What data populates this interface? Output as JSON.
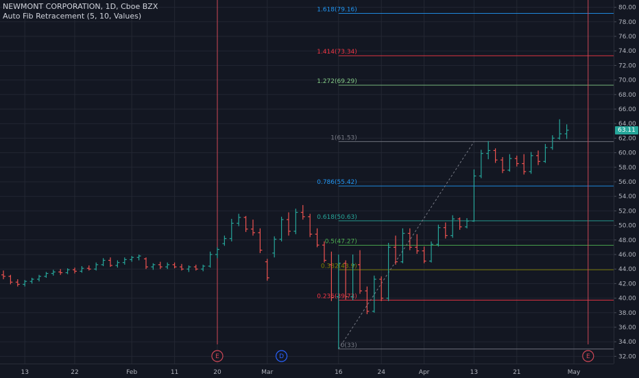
{
  "legend": {
    "symbol_line": "NEWMONT CORPORATION, 1D, Cboe BZX",
    "indicator_line": "Auto Fib Retracement (5, 10, Values)"
  },
  "colors": {
    "background": "#131722",
    "grid": "#232733",
    "up": "#26a69a",
    "down": "#ef5350",
    "event_line": "#d14857",
    "dividend": "#2962ff"
  },
  "price_axis": {
    "min": 31,
    "max": 81,
    "labels": [
      "80.00",
      "78.00",
      "76.00",
      "74.00",
      "72.00",
      "70.00",
      "68.00",
      "66.00",
      "64.00",
      "62.00",
      "60.00",
      "58.00",
      "56.00",
      "54.00",
      "52.00",
      "50.00",
      "48.00",
      "46.00",
      "44.00",
      "42.00",
      "40.00",
      "38.00",
      "36.00",
      "34.00",
      "32.00"
    ],
    "values": [
      80,
      78,
      76,
      74,
      72,
      70,
      68,
      66,
      64,
      62,
      60,
      58,
      56,
      54,
      52,
      50,
      48,
      46,
      44,
      42,
      40,
      38,
      36,
      34,
      32
    ]
  },
  "current_price": {
    "value": 63.11,
    "label": "63.11"
  },
  "time_axis": {
    "labels": [
      {
        "text": "13",
        "index": 3
      },
      {
        "text": "22",
        "index": 10
      },
      {
        "text": "Feb",
        "index": 18
      },
      {
        "text": "11",
        "index": 24
      },
      {
        "text": "20",
        "index": 30
      },
      {
        "text": "Mar",
        "index": 37
      },
      {
        "text": "16",
        "index": 47
      },
      {
        "text": "24",
        "index": 53
      },
      {
        "text": "Apr",
        "index": 59
      },
      {
        "text": "13",
        "index": 66
      },
      {
        "text": "21",
        "index": 72
      },
      {
        "text": "May",
        "index": 80
      }
    ]
  },
  "events": [
    {
      "type": "earnings",
      "label": "E",
      "index": 30
    },
    {
      "type": "dividend",
      "label": "D",
      "index": 39
    },
    {
      "type": "earnings",
      "label": "E",
      "index": 82
    }
  ],
  "fib_levels": [
    {
      "ratio": "1.618",
      "value": 79.16,
      "label": "1.618(79.16)",
      "color": "#2196f3"
    },
    {
      "ratio": "1.414",
      "value": 73.34,
      "label": "1.414(73.34)",
      "color": "#f23645"
    },
    {
      "ratio": "1.272",
      "value": 69.29,
      "label": "1.272(69.29)",
      "color": "#81c784"
    },
    {
      "ratio": "1",
      "value": 61.53,
      "label": "1(61.53)",
      "color": "#787b86"
    },
    {
      "ratio": "0.786",
      "value": 55.42,
      "label": "0.786(55.42)",
      "color": "#2196f3"
    },
    {
      "ratio": "0.618",
      "value": 50.63,
      "label": "0.618(50.63)",
      "color": "#26a69a"
    },
    {
      "ratio": "0.5",
      "value": 47.27,
      "label": "0.5(47.27)",
      "color": "#4caf50"
    },
    {
      "ratio": "0.382",
      "value": 43.9,
      "label": "0.382(43.9)",
      "color": "#808000"
    },
    {
      "ratio": "0.236",
      "value": 39.73,
      "label": "0.236(39.73)",
      "color": "#f23645"
    },
    {
      "ratio": "0",
      "value": 33,
      "label": "0(33)",
      "color": "#787b86"
    }
  ],
  "chart_data": {
    "type": "ohlc",
    "title": "NEWMONT CORPORATION, 1D, Cboe BZX",
    "ylim": [
      31,
      81
    ],
    "fib_anchor": {
      "from_index": 47,
      "from_value": 33,
      "to_index": 66,
      "to_value": 61.53
    },
    "bars": [
      {
        "o": 43.2,
        "h": 43.8,
        "l": 42.6,
        "c": 43.0
      },
      {
        "o": 43.0,
        "h": 43.2,
        "l": 41.9,
        "c": 42.2
      },
      {
        "o": 42.2,
        "h": 42.6,
        "l": 41.6,
        "c": 41.9
      },
      {
        "o": 41.9,
        "h": 42.5,
        "l": 41.6,
        "c": 42.3
      },
      {
        "o": 42.3,
        "h": 42.8,
        "l": 42.0,
        "c": 42.6
      },
      {
        "o": 42.6,
        "h": 43.2,
        "l": 42.3,
        "c": 43.0
      },
      {
        "o": 43.0,
        "h": 43.6,
        "l": 42.8,
        "c": 43.4
      },
      {
        "o": 43.4,
        "h": 43.9,
        "l": 43.1,
        "c": 43.6
      },
      {
        "o": 43.6,
        "h": 44.0,
        "l": 43.2,
        "c": 43.5
      },
      {
        "o": 43.5,
        "h": 44.1,
        "l": 43.3,
        "c": 43.9
      },
      {
        "o": 43.9,
        "h": 44.2,
        "l": 43.4,
        "c": 43.7
      },
      {
        "o": 43.7,
        "h": 44.4,
        "l": 43.5,
        "c": 44.1
      },
      {
        "o": 44.1,
        "h": 44.5,
        "l": 43.8,
        "c": 44.0
      },
      {
        "o": 44.0,
        "h": 44.9,
        "l": 43.8,
        "c": 44.6
      },
      {
        "o": 44.6,
        "h": 45.5,
        "l": 44.4,
        "c": 45.2
      },
      {
        "o": 45.2,
        "h": 45.6,
        "l": 44.3,
        "c": 44.5
      },
      {
        "o": 44.5,
        "h": 45.2,
        "l": 44.2,
        "c": 44.9
      },
      {
        "o": 44.9,
        "h": 45.6,
        "l": 44.6,
        "c": 45.3
      },
      {
        "o": 45.3,
        "h": 45.8,
        "l": 45.0,
        "c": 45.6
      },
      {
        "o": 45.6,
        "h": 46.0,
        "l": 45.2,
        "c": 45.8
      },
      {
        "o": 45.4,
        "h": 45.6,
        "l": 44.0,
        "c": 44.3
      },
      {
        "o": 44.3,
        "h": 44.8,
        "l": 43.9,
        "c": 44.6
      },
      {
        "o": 44.6,
        "h": 45.0,
        "l": 44.0,
        "c": 44.3
      },
      {
        "o": 44.3,
        "h": 44.9,
        "l": 44.0,
        "c": 44.6
      },
      {
        "o": 44.6,
        "h": 44.9,
        "l": 44.1,
        "c": 44.3
      },
      {
        "o": 44.3,
        "h": 44.7,
        "l": 43.8,
        "c": 44.0
      },
      {
        "o": 44.0,
        "h": 44.5,
        "l": 43.6,
        "c": 44.3
      },
      {
        "o": 44.3,
        "h": 44.6,
        "l": 43.8,
        "c": 44.0
      },
      {
        "o": 44.0,
        "h": 44.6,
        "l": 43.7,
        "c": 44.4
      },
      {
        "o": 44.4,
        "h": 46.4,
        "l": 44.2,
        "c": 46.0
      },
      {
        "o": 46.0,
        "h": 47.0,
        "l": 45.5,
        "c": 46.7
      },
      {
        "o": 47.5,
        "h": 48.6,
        "l": 47.2,
        "c": 48.2
      },
      {
        "o": 48.2,
        "h": 50.9,
        "l": 47.8,
        "c": 50.3
      },
      {
        "o": 50.3,
        "h": 51.6,
        "l": 49.9,
        "c": 51.1
      },
      {
        "o": 51.1,
        "h": 51.3,
        "l": 49.1,
        "c": 49.5
      },
      {
        "o": 49.5,
        "h": 50.8,
        "l": 48.6,
        "c": 49.0
      },
      {
        "o": 49.0,
        "h": 49.6,
        "l": 46.2,
        "c": 46.6
      },
      {
        "o": 45.0,
        "h": 45.4,
        "l": 42.4,
        "c": 42.8
      },
      {
        "o": 46.2,
        "h": 48.5,
        "l": 45.6,
        "c": 48.1
      },
      {
        "o": 48.1,
        "h": 51.2,
        "l": 47.8,
        "c": 50.8
      },
      {
        "o": 50.8,
        "h": 51.8,
        "l": 48.6,
        "c": 49.2
      },
      {
        "o": 49.2,
        "h": 52.3,
        "l": 48.8,
        "c": 51.8
      },
      {
        "o": 51.8,
        "h": 52.8,
        "l": 50.8,
        "c": 51.2
      },
      {
        "o": 51.2,
        "h": 51.6,
        "l": 48.4,
        "c": 48.8
      },
      {
        "o": 48.8,
        "h": 49.6,
        "l": 47.0,
        "c": 47.3
      },
      {
        "o": 47.3,
        "h": 47.8,
        "l": 44.9,
        "c": 45.2
      },
      {
        "o": 44.6,
        "h": 46.4,
        "l": 39.6,
        "c": 40.1
      },
      {
        "o": 40.2,
        "h": 46.0,
        "l": 33.0,
        "c": 44.8
      },
      {
        "o": 44.8,
        "h": 45.2,
        "l": 39.8,
        "c": 40.2
      },
      {
        "o": 40.2,
        "h": 46.0,
        "l": 39.7,
        "c": 44.6
      },
      {
        "o": 44.6,
        "h": 46.6,
        "l": 40.6,
        "c": 41.0
      },
      {
        "o": 41.0,
        "h": 41.6,
        "l": 37.8,
        "c": 38.2
      },
      {
        "o": 38.2,
        "h": 43.1,
        "l": 38.0,
        "c": 42.6
      },
      {
        "o": 42.6,
        "h": 43.0,
        "l": 39.6,
        "c": 40.0
      },
      {
        "o": 40.0,
        "h": 47.6,
        "l": 39.6,
        "c": 47.0
      },
      {
        "o": 47.0,
        "h": 48.6,
        "l": 44.6,
        "c": 45.0
      },
      {
        "o": 45.0,
        "h": 49.6,
        "l": 44.8,
        "c": 48.9
      },
      {
        "o": 48.9,
        "h": 49.6,
        "l": 46.6,
        "c": 47.0
      },
      {
        "o": 47.0,
        "h": 48.8,
        "l": 46.1,
        "c": 46.5
      },
      {
        "o": 46.5,
        "h": 47.1,
        "l": 44.8,
        "c": 45.1
      },
      {
        "o": 45.1,
        "h": 47.8,
        "l": 44.9,
        "c": 47.4
      },
      {
        "o": 47.4,
        "h": 50.1,
        "l": 47.1,
        "c": 49.7
      },
      {
        "o": 49.7,
        "h": 50.4,
        "l": 48.2,
        "c": 48.6
      },
      {
        "o": 48.6,
        "h": 51.4,
        "l": 48.3,
        "c": 50.9
      },
      {
        "o": 50.9,
        "h": 51.1,
        "l": 49.4,
        "c": 49.8
      },
      {
        "o": 49.8,
        "h": 51.0,
        "l": 49.6,
        "c": 50.6
      },
      {
        "o": 50.6,
        "h": 57.7,
        "l": 50.5,
        "c": 56.8
      },
      {
        "o": 56.8,
        "h": 60.4,
        "l": 56.5,
        "c": 59.9
      },
      {
        "o": 59.9,
        "h": 61.6,
        "l": 59.1,
        "c": 60.3
      },
      {
        "o": 60.3,
        "h": 60.6,
        "l": 58.6,
        "c": 59.0
      },
      {
        "o": 59.0,
        "h": 59.4,
        "l": 57.2,
        "c": 57.6
      },
      {
        "o": 57.6,
        "h": 59.8,
        "l": 57.4,
        "c": 59.2
      },
      {
        "o": 59.2,
        "h": 59.6,
        "l": 58.1,
        "c": 58.5
      },
      {
        "o": 58.5,
        "h": 59.8,
        "l": 57.0,
        "c": 57.4
      },
      {
        "o": 57.4,
        "h": 60.1,
        "l": 57.1,
        "c": 59.6
      },
      {
        "o": 59.6,
        "h": 60.3,
        "l": 58.3,
        "c": 58.8
      },
      {
        "o": 58.8,
        "h": 61.2,
        "l": 58.6,
        "c": 60.7
      },
      {
        "o": 60.7,
        "h": 62.4,
        "l": 60.4,
        "c": 62.0
      },
      {
        "o": 62.0,
        "h": 64.6,
        "l": 61.8,
        "c": 62.6
      },
      {
        "o": 62.6,
        "h": 63.9,
        "l": 61.9,
        "c": 63.1
      }
    ]
  }
}
